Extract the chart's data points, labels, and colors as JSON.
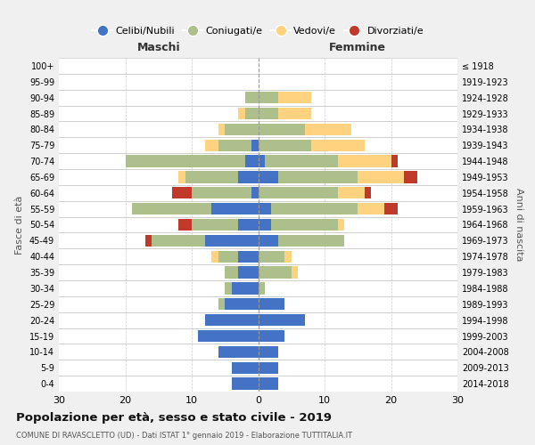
{
  "age_groups": [
    "0-4",
    "5-9",
    "10-14",
    "15-19",
    "20-24",
    "25-29",
    "30-34",
    "35-39",
    "40-44",
    "45-49",
    "50-54",
    "55-59",
    "60-64",
    "65-69",
    "70-74",
    "75-79",
    "80-84",
    "85-89",
    "90-94",
    "95-99",
    "100+"
  ],
  "birth_years": [
    "2014-2018",
    "2009-2013",
    "2004-2008",
    "1999-2003",
    "1994-1998",
    "1989-1993",
    "1984-1988",
    "1979-1983",
    "1974-1978",
    "1969-1973",
    "1964-1968",
    "1959-1963",
    "1954-1958",
    "1949-1953",
    "1944-1948",
    "1939-1943",
    "1934-1938",
    "1929-1933",
    "1924-1928",
    "1919-1923",
    "≤ 1918"
  ],
  "maschi": {
    "celibi": [
      4,
      4,
      6,
      9,
      8,
      5,
      4,
      3,
      3,
      8,
      3,
      7,
      1,
      3,
      2,
      1,
      0,
      0,
      0,
      0,
      0
    ],
    "coniugati": [
      0,
      0,
      0,
      0,
      0,
      1,
      1,
      2,
      3,
      8,
      7,
      12,
      9,
      8,
      18,
      5,
      5,
      2,
      2,
      0,
      0
    ],
    "vedovi": [
      0,
      0,
      0,
      0,
      0,
      0,
      0,
      0,
      1,
      0,
      0,
      0,
      0,
      1,
      0,
      2,
      1,
      1,
      0,
      0,
      0
    ],
    "divorziati": [
      0,
      0,
      0,
      0,
      0,
      0,
      0,
      0,
      0,
      1,
      2,
      0,
      3,
      0,
      0,
      0,
      0,
      0,
      0,
      0,
      0
    ]
  },
  "femmine": {
    "nubili": [
      3,
      3,
      3,
      4,
      7,
      4,
      0,
      0,
      0,
      3,
      2,
      2,
      0,
      3,
      1,
      0,
      0,
      0,
      0,
      0,
      0
    ],
    "coniugate": [
      0,
      0,
      0,
      0,
      0,
      0,
      1,
      5,
      4,
      10,
      10,
      13,
      12,
      12,
      11,
      8,
      7,
      3,
      3,
      0,
      0
    ],
    "vedove": [
      0,
      0,
      0,
      0,
      0,
      0,
      0,
      1,
      1,
      0,
      1,
      4,
      4,
      7,
      8,
      8,
      7,
      5,
      5,
      0,
      0
    ],
    "divorziate": [
      0,
      0,
      0,
      0,
      0,
      0,
      0,
      0,
      0,
      0,
      0,
      2,
      1,
      2,
      1,
      0,
      0,
      0,
      0,
      0,
      0
    ]
  },
  "colors": {
    "celibi": "#4472C4",
    "coniugati": "#ADBF8A",
    "vedovi": "#FFD27F",
    "divorziati": "#C0392B"
  },
  "xlim": 30,
  "title": "Popolazione per età, sesso e stato civile - 2019",
  "subtitle": "COMUNE DI RAVASCLETTO (UD) - Dati ISTAT 1° gennaio 2019 - Elaborazione TUTTITALIA.IT",
  "ylabel_left": "Fasce di età",
  "ylabel_right": "Anni di nascita",
  "legend_labels": [
    "Celibi/Nubili",
    "Coniugati/e",
    "Vedovi/e",
    "Divorziati/e"
  ],
  "header_maschi": "Maschi",
  "header_femmine": "Femmine",
  "bg_color": "#f0f0f0",
  "plot_bg": "#ffffff"
}
